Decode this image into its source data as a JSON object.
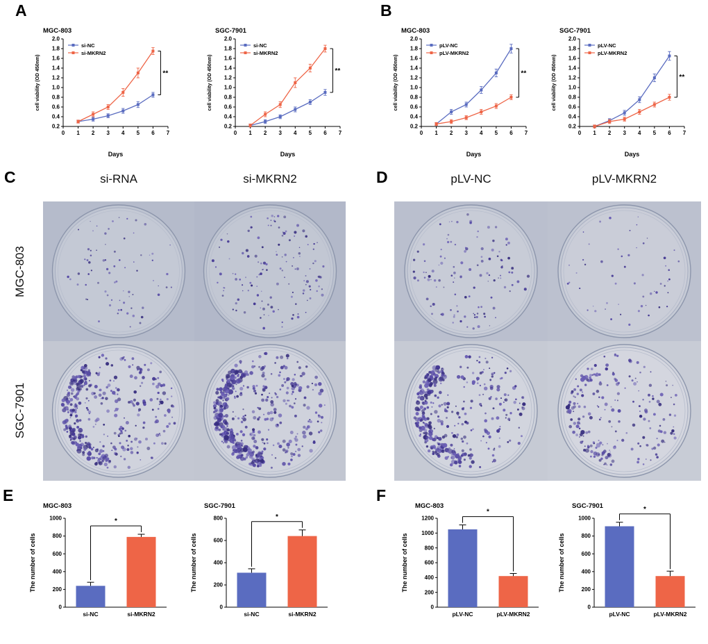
{
  "panels": {
    "A": {
      "label": "A"
    },
    "B": {
      "label": "B"
    },
    "C": {
      "label": "C",
      "col_headers": [
        "si-RNA",
        "si-MKRN2"
      ],
      "row_labels": [
        "MGC-803",
        "SGC-7901"
      ]
    },
    "D": {
      "label": "D",
      "col_headers": [
        "pLV-NC",
        "pLV-MKRN2"
      ]
    },
    "E": {
      "label": "E"
    },
    "F": {
      "label": "F"
    }
  },
  "colors": {
    "blue": "#5a6cc0",
    "orange": "#ee6547",
    "colony_palette": [
      "#463a94",
      "#584ca6",
      "#372e7e",
      "#6a5eb4"
    ]
  },
  "chart_data": [
    {
      "id": "A-MGC-803",
      "type": "line",
      "title": "MGC-803",
      "xlabel": "Days",
      "ylabel": "cell viability (OD 450nm)",
      "x": [
        1,
        2,
        3,
        4,
        5,
        6
      ],
      "xlim": [
        0,
        7
      ],
      "xticks": [
        0,
        1,
        2,
        3,
        4,
        5,
        6,
        7
      ],
      "ylim": [
        0.2,
        2.0
      ],
      "yticks": [
        0.2,
        0.4,
        0.6,
        0.8,
        1.0,
        1.2,
        1.4,
        1.6,
        1.8,
        2.0
      ],
      "significance": "**",
      "series": [
        {
          "name": "si-NC",
          "color": "#5a6cc0",
          "values": [
            0.3,
            0.35,
            0.42,
            0.52,
            0.65,
            0.85
          ],
          "errors": [
            0.03,
            0.04,
            0.04,
            0.05,
            0.06,
            0.05
          ]
        },
        {
          "name": "si-MKRN2",
          "color": "#ee6547",
          "values": [
            0.3,
            0.45,
            0.6,
            0.9,
            1.3,
            1.75
          ],
          "errors": [
            0.03,
            0.05,
            0.05,
            0.08,
            0.1,
            0.07
          ]
        }
      ]
    },
    {
      "id": "A-SGC-7901",
      "type": "line",
      "title": "SGC-7901",
      "xlabel": "Days",
      "ylabel": "cell viability (OD 450nm)",
      "x": [
        1,
        2,
        3,
        4,
        5,
        6
      ],
      "xlim": [
        0,
        7
      ],
      "xticks": [
        0,
        1,
        2,
        3,
        4,
        5,
        6,
        7
      ],
      "ylim": [
        0.2,
        2.0
      ],
      "yticks": [
        0.2,
        0.4,
        0.6,
        0.8,
        1.0,
        1.2,
        1.4,
        1.6,
        1.8,
        2.0
      ],
      "significance": "**",
      "series": [
        {
          "name": "si-NC",
          "color": "#5a6cc0",
          "values": [
            0.22,
            0.3,
            0.4,
            0.55,
            0.7,
            0.9
          ],
          "errors": [
            0.03,
            0.04,
            0.04,
            0.05,
            0.05,
            0.06
          ]
        },
        {
          "name": "si-MKRN2",
          "color": "#ee6547",
          "values": [
            0.22,
            0.45,
            0.65,
            1.1,
            1.4,
            1.8
          ],
          "errors": [
            0.03,
            0.05,
            0.06,
            0.1,
            0.08,
            0.07
          ]
        }
      ]
    },
    {
      "id": "B-MGC-803",
      "type": "line",
      "title": "MGC-803",
      "xlabel": "Days",
      "ylabel": "cell viability (OD 450nm)",
      "x": [
        1,
        2,
        3,
        4,
        5,
        6
      ],
      "xlim": [
        0,
        7
      ],
      "xticks": [
        0,
        1,
        2,
        3,
        4,
        5,
        6,
        7
      ],
      "ylim": [
        0.2,
        2.0
      ],
      "yticks": [
        0.2,
        0.4,
        0.6,
        0.8,
        1.0,
        1.2,
        1.4,
        1.6,
        1.8,
        2.0
      ],
      "significance": "**",
      "series": [
        {
          "name": "pLV-NC",
          "color": "#5a6cc0",
          "values": [
            0.25,
            0.5,
            0.65,
            0.95,
            1.3,
            1.8
          ],
          "errors": [
            0.03,
            0.05,
            0.05,
            0.07,
            0.08,
            0.09
          ]
        },
        {
          "name": "pLV-MKRN2",
          "color": "#ee6547",
          "values": [
            0.25,
            0.3,
            0.38,
            0.5,
            0.62,
            0.8
          ],
          "errors": [
            0.03,
            0.04,
            0.04,
            0.05,
            0.05,
            0.05
          ]
        }
      ]
    },
    {
      "id": "B-SGC-7901",
      "type": "line",
      "title": "SGC-7901",
      "xlabel": "Days",
      "ylabel": "cell viability (OD 450nm)",
      "x": [
        1,
        2,
        3,
        4,
        5,
        6
      ],
      "xlim": [
        0,
        7
      ],
      "xticks": [
        0,
        1,
        2,
        3,
        4,
        5,
        6,
        7
      ],
      "ylim": [
        0.2,
        2.0
      ],
      "yticks": [
        0.2,
        0.4,
        0.6,
        0.8,
        1.0,
        1.2,
        1.4,
        1.6,
        1.8,
        2.0
      ],
      "significance": "**",
      "series": [
        {
          "name": "pLV-NC",
          "color": "#5a6cc0",
          "values": [
            0.2,
            0.32,
            0.48,
            0.75,
            1.2,
            1.65
          ],
          "errors": [
            0.03,
            0.04,
            0.05,
            0.06,
            0.08,
            0.09
          ]
        },
        {
          "name": "pLV-MKRN2",
          "color": "#ee6547",
          "values": [
            0.2,
            0.3,
            0.35,
            0.5,
            0.65,
            0.8
          ],
          "errors": [
            0.03,
            0.04,
            0.04,
            0.05,
            0.05,
            0.06
          ]
        }
      ]
    },
    {
      "id": "E-MGC-803",
      "type": "bar",
      "title": "MGC-803",
      "ylabel": "The number of cells",
      "categories": [
        "si-NC",
        "si-MKRN2"
      ],
      "values": [
        240,
        790
      ],
      "errors": [
        40,
        30
      ],
      "ylim": [
        0,
        1000
      ],
      "yticks": [
        0,
        200,
        400,
        600,
        800,
        1000
      ],
      "colors": [
        "#5a6cc0",
        "#ee6547"
      ],
      "significance": "*"
    },
    {
      "id": "E-SGC-7901",
      "type": "bar",
      "title": "SGC-7901",
      "ylabel": "The number of cells",
      "categories": [
        "si-NC",
        "si-MKRN2"
      ],
      "values": [
        310,
        640
      ],
      "errors": [
        35,
        55
      ],
      "ylim": [
        0,
        800
      ],
      "yticks": [
        0,
        200,
        400,
        600,
        800
      ],
      "colors": [
        "#5a6cc0",
        "#ee6547"
      ],
      "significance": "*"
    },
    {
      "id": "F-MGC-803",
      "type": "bar",
      "title": "MGC-803",
      "ylabel": "The number of cells",
      "categories": [
        "pLV-NC",
        "pLV-MKRN2"
      ],
      "values": [
        1050,
        420
      ],
      "errors": [
        60,
        35
      ],
      "ylim": [
        0,
        1200
      ],
      "yticks": [
        0,
        200,
        400,
        600,
        800,
        1000,
        1200
      ],
      "colors": [
        "#5a6cc0",
        "#ee6547"
      ],
      "significance": "*"
    },
    {
      "id": "F-SGC-7901",
      "type": "bar",
      "title": "SGC-7901",
      "ylabel": "The number of cells",
      "categories": [
        "pLV-NC",
        "pLV-MKRN2"
      ],
      "values": [
        910,
        350
      ],
      "errors": [
        45,
        55
      ],
      "ylim": [
        0,
        1000
      ],
      "yticks": [
        0,
        200,
        400,
        600,
        800,
        1000
      ],
      "colors": [
        "#5a6cc0",
        "#ee6547"
      ],
      "significance": "*"
    }
  ],
  "colony_assays": {
    "C": {
      "dishes": [
        {
          "name": "MGC-803 si-RNA",
          "colonies": 75,
          "edge_cluster": 0,
          "dot_scale": 0.85,
          "bg": "#b5bbcb",
          "well": "#bec4d1",
          "dish": "#c4c9d5"
        },
        {
          "name": "MGC-803 si-MKRN2",
          "colonies": 140,
          "edge_cluster": 0,
          "dot_scale": 0.95,
          "bg": "#b2b8c9",
          "well": "#bcc2cf",
          "dish": "#c2c7d3"
        },
        {
          "name": "SGC-7901 si-RNA",
          "colonies": 380,
          "edge_cluster": 0.45,
          "dot_scale": 1.25,
          "bg": "#c3c7d2",
          "well": "#ccd0da",
          "dish": "#d0d3dd"
        },
        {
          "name": "SGC-7901 si-MKRN2",
          "colonies": 470,
          "edge_cluster": 0.42,
          "dot_scale": 1.3,
          "bg": "#c2c6d1",
          "well": "#cbcfd9",
          "dish": "#cfd2dc"
        }
      ]
    },
    "D": {
      "dishes": [
        {
          "name": "MGC-803 pLV-NC",
          "colonies": 120,
          "edge_cluster": 0,
          "dot_scale": 1.0,
          "bg": "#babfce",
          "well": "#c3c8d4",
          "dish": "#c8ccd7"
        },
        {
          "name": "MGC-803 pLV-MKRN2",
          "colonies": 55,
          "edge_cluster": 0,
          "dot_scale": 0.85,
          "bg": "#bcc1cf",
          "well": "#c5cad5",
          "dish": "#cacdd8"
        },
        {
          "name": "SGC-7901 pLV-NC",
          "colonies": 380,
          "edge_cluster": 0.42,
          "dot_scale": 1.25,
          "bg": "#c6cad4",
          "well": "#ced2db",
          "dish": "#d2d5de"
        },
        {
          "name": "SGC-7901 pLV-MKRN2",
          "colonies": 215,
          "edge_cluster": 0.3,
          "dot_scale": 1.15,
          "bg": "#c8ccd6",
          "well": "#d0d3dc",
          "dish": "#d4d6df"
        }
      ]
    }
  }
}
